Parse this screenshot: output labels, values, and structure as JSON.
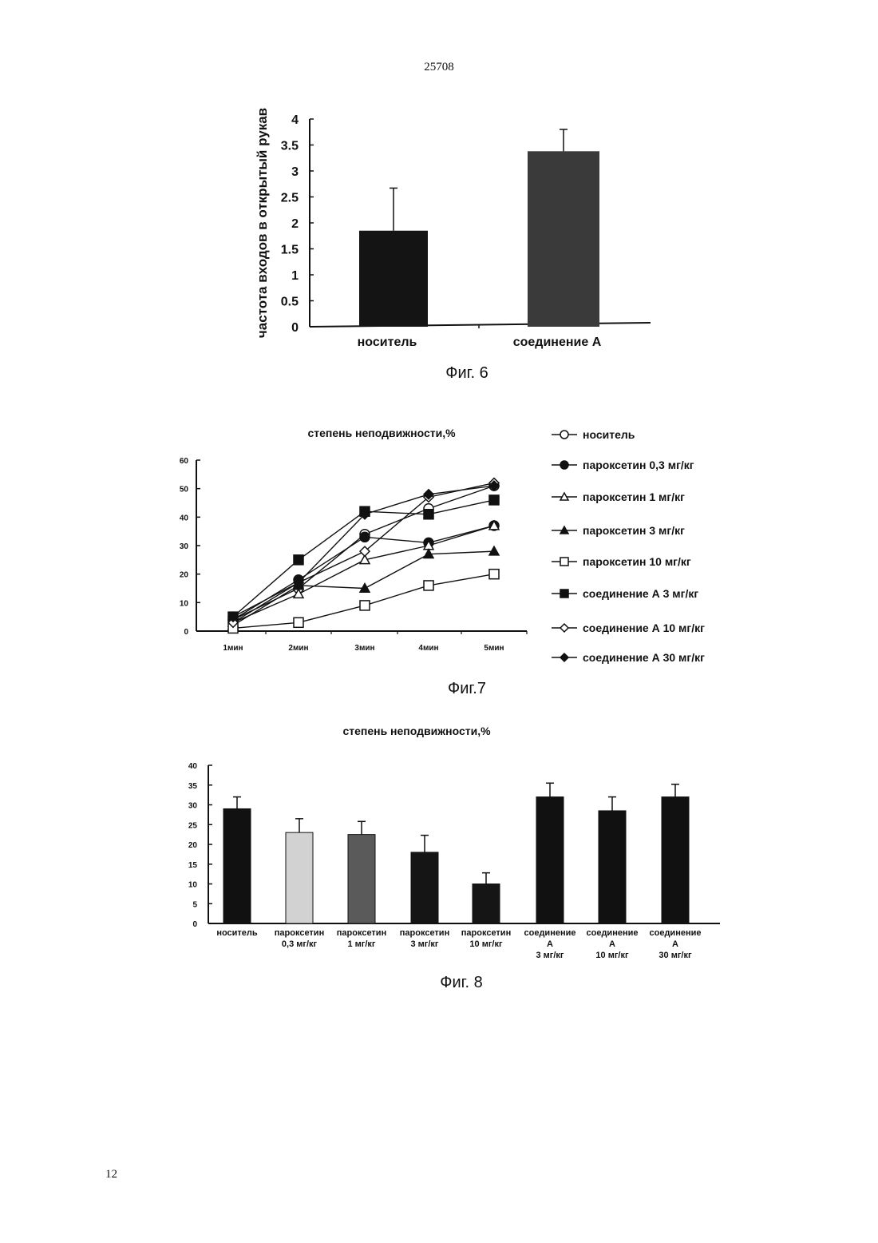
{
  "page": {
    "number_top": "25708",
    "number_bottom": "12"
  },
  "captions": {
    "fig6": "Фиг. 6",
    "fig7": "Фиг.7",
    "fig8": "Фиг. 8"
  },
  "chart_data": [
    {
      "id": "fig6",
      "type": "bar",
      "title": "",
      "ylabel": "частота входов в открытый рукав",
      "xlabel": "",
      "categories": [
        "носитель",
        "соединение А"
      ],
      "values": [
        1.85,
        3.38
      ],
      "errors": [
        0.82,
        0.42
      ],
      "ylim": [
        0,
        4
      ],
      "yticks": [
        "0",
        "0.5",
        "1",
        "1.5",
        "2",
        "2.5",
        "3",
        "3.5",
        "4"
      ],
      "colors": [
        "#141414",
        "#3a3a3a"
      ],
      "grid": false
    },
    {
      "id": "fig7",
      "type": "line",
      "title": "степень неподвижности,%",
      "xlabel": "",
      "ylabel": "",
      "x": [
        "1мин",
        "2мин",
        "3мин",
        "4мин",
        "5мин"
      ],
      "ylim": [
        0,
        60
      ],
      "yticks": [
        "0",
        "10",
        "20",
        "30",
        "40",
        "50",
        "60"
      ],
      "legend_position": "right",
      "series": [
        {
          "name": "носитель",
          "marker": "circle-open",
          "values": [
            4,
            15,
            34,
            43,
            51
          ]
        },
        {
          "name": "пароксетин 0,3 мг/кг",
          "marker": "circle-filled",
          "values": [
            4,
            18,
            33,
            31,
            37
          ]
        },
        {
          "name": "пароксетин 1 мг/кг",
          "marker": "triangle-open",
          "values": [
            3,
            13,
            25,
            30,
            37
          ]
        },
        {
          "name": "пароксетин 3 мг/кг",
          "marker": "triangle-filled",
          "values": [
            2,
            16,
            15,
            27,
            28
          ]
        },
        {
          "name": "пароксетин 10 мг/кг",
          "marker": "square-open",
          "values": [
            1,
            3,
            9,
            16,
            20
          ]
        },
        {
          "name": "соединение А 3 мг/кг",
          "marker": "square-filled",
          "values": [
            5,
            25,
            42,
            41,
            46
          ]
        },
        {
          "name": "соединение А 10 мг/кг",
          "marker": "diamond-open",
          "values": [
            3,
            17,
            28,
            47,
            52
          ]
        },
        {
          "name": "соединение А 30 мг/кг",
          "marker": "diamond-filled",
          "values": [
            5,
            17,
            41,
            48,
            51
          ]
        }
      ],
      "grid": false
    },
    {
      "id": "fig8",
      "type": "bar",
      "title": "степень неподвижности,%",
      "xlabel": "",
      "ylabel": "",
      "categories": [
        [
          "носитель"
        ],
        [
          "пароксетин",
          "0,3 мг/кг"
        ],
        [
          "пароксетин",
          "1 мг/кг"
        ],
        [
          "пароксетин",
          "3 мг/кг"
        ],
        [
          "пароксетин",
          "10 мг/кг"
        ],
        [
          "соединение",
          "А",
          "3 мг/кг"
        ],
        [
          "соединение",
          "А",
          "10 мг/кг"
        ],
        [
          "соединение",
          "А",
          "30 мг/кг"
        ]
      ],
      "values": [
        29,
        23,
        22.5,
        18,
        10,
        32,
        28.5,
        32
      ],
      "errors": [
        3,
        3.5,
        3.3,
        4.3,
        2.8,
        3.5,
        3.5,
        3.2
      ],
      "ylim": [
        0,
        40
      ],
      "yticks": [
        "0",
        "5",
        "10",
        "15",
        "20",
        "25",
        "30",
        "35",
        "40"
      ],
      "colors": [
        "#111111",
        "#d2d2d2",
        "#5a5a5a",
        "#151515",
        "#151515",
        "#111111",
        "#111111",
        "#111111"
      ],
      "grid": false
    }
  ]
}
